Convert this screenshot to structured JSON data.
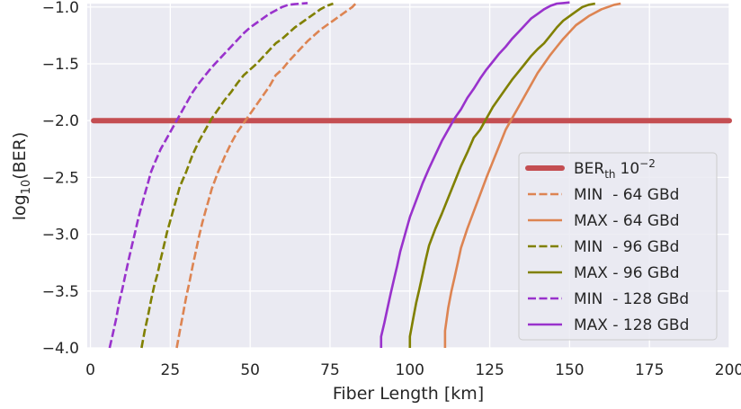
{
  "chart_data": {
    "type": "line",
    "xlabel": "Fiber Length [km]",
    "ylabel_main": "log",
    "ylabel_sub": "10",
    "ylabel_rest": "(BER)",
    "xlim": [
      -1,
      200
    ],
    "ylim": [
      -4.0,
      -0.97
    ],
    "xticks": [
      0,
      25,
      50,
      75,
      100,
      125,
      150,
      175,
      200
    ],
    "yticks": [
      -1.0,
      -1.5,
      -2.0,
      -2.5,
      -3.0,
      -3.5,
      -4.0
    ],
    "ytick_labels": [
      "−1.0",
      "−1.5",
      "−2.0",
      "−2.5",
      "−3.0",
      "−3.5",
      "−4.0"
    ],
    "grid": true,
    "legend_position": "lower-right",
    "threshold": {
      "name_main": "BER",
      "name_sub": "th",
      "name_value": "10",
      "name_exp": "−2",
      "y": -2.0,
      "x": [
        1,
        200
      ],
      "color": "#c44e52"
    },
    "series": [
      {
        "name": "MIN  - 64 GBd",
        "color": "#dd8452",
        "dash": true,
        "x": [
          27,
          28,
          29,
          30,
          31,
          32,
          33,
          34,
          35,
          36,
          37,
          38,
          40,
          42,
          44,
          46,
          48,
          50,
          52,
          54,
          56,
          58,
          60,
          62,
          64,
          66,
          68,
          70,
          72,
          74,
          76,
          78,
          80,
          82,
          83
        ],
        "y": [
          -4.0,
          -3.85,
          -3.7,
          -3.55,
          -3.42,
          -3.28,
          -3.15,
          -3.02,
          -2.9,
          -2.8,
          -2.7,
          -2.6,
          -2.45,
          -2.32,
          -2.2,
          -2.1,
          -2.02,
          -1.94,
          -1.86,
          -1.78,
          -1.7,
          -1.6,
          -1.55,
          -1.48,
          -1.42,
          -1.36,
          -1.3,
          -1.25,
          -1.2,
          -1.16,
          -1.12,
          -1.08,
          -1.04,
          -1.0,
          -0.97
        ]
      },
      {
        "name": "MAX - 64 GBd",
        "color": "#dd8452",
        "dash": false,
        "x": [
          111,
          111,
          112,
          113,
          114,
          115,
          116,
          118,
          120,
          122,
          124,
          126,
          128,
          130,
          132,
          134,
          136,
          138,
          140,
          142,
          144,
          146,
          148,
          150,
          152,
          154,
          156,
          158,
          160,
          162,
          164,
          166
        ],
        "y": [
          -4.0,
          -3.85,
          -3.65,
          -3.5,
          -3.38,
          -3.25,
          -3.12,
          -2.95,
          -2.8,
          -2.65,
          -2.5,
          -2.36,
          -2.22,
          -2.08,
          -1.98,
          -1.88,
          -1.78,
          -1.68,
          -1.58,
          -1.5,
          -1.42,
          -1.35,
          -1.28,
          -1.22,
          -1.16,
          -1.12,
          -1.08,
          -1.05,
          -1.02,
          -1.0,
          -0.98,
          -0.97
        ]
      },
      {
        "name": "MIN  - 96 GBd",
        "color": "#808000",
        "dash": true,
        "x": [
          16,
          17,
          18,
          19,
          20,
          21,
          22,
          23,
          24,
          25,
          26,
          27,
          28,
          30,
          32,
          34,
          36,
          38,
          40,
          42,
          44,
          46,
          48,
          50,
          52,
          54,
          56,
          58,
          60,
          62,
          64,
          66,
          68,
          70,
          72,
          74,
          76
        ],
        "y": [
          -4.0,
          -3.85,
          -3.72,
          -3.58,
          -3.45,
          -3.35,
          -3.22,
          -3.1,
          -2.98,
          -2.88,
          -2.78,
          -2.68,
          -2.58,
          -2.45,
          -2.3,
          -2.18,
          -2.08,
          -1.98,
          -1.9,
          -1.82,
          -1.75,
          -1.67,
          -1.6,
          -1.55,
          -1.5,
          -1.44,
          -1.38,
          -1.32,
          -1.28,
          -1.23,
          -1.18,
          -1.14,
          -1.1,
          -1.06,
          -1.02,
          -0.99,
          -0.97
        ]
      },
      {
        "name": "MAX - 96 GBd",
        "color": "#808000",
        "dash": false,
        "x": [
          100,
          100,
          101,
          102,
          103,
          104,
          105,
          106,
          108,
          110,
          112,
          114,
          116,
          118,
          120,
          122,
          124,
          126,
          128,
          130,
          132,
          134,
          136,
          138,
          140,
          142,
          144,
          146,
          148,
          150,
          152,
          154,
          156,
          158
        ],
        "y": [
          -4.0,
          -3.9,
          -3.75,
          -3.6,
          -3.48,
          -3.35,
          -3.22,
          -3.1,
          -2.95,
          -2.82,
          -2.68,
          -2.54,
          -2.4,
          -2.28,
          -2.15,
          -2.08,
          -1.98,
          -1.88,
          -1.8,
          -1.72,
          -1.64,
          -1.57,
          -1.5,
          -1.43,
          -1.37,
          -1.32,
          -1.25,
          -1.18,
          -1.12,
          -1.08,
          -1.04,
          -1.0,
          -0.98,
          -0.97
        ]
      },
      {
        "name": "MIN  - 128 GBd",
        "color": "#9932cc",
        "dash": true,
        "x": [
          6,
          7,
          8,
          9,
          10,
          11,
          12,
          13,
          14,
          15,
          16,
          17,
          18,
          19,
          20,
          22,
          24,
          26,
          28,
          30,
          32,
          34,
          36,
          38,
          40,
          42,
          44,
          46,
          48,
          50,
          52,
          54,
          56,
          58,
          60,
          62,
          64,
          66,
          68
        ],
        "y": [
          -4.0,
          -3.88,
          -3.75,
          -3.6,
          -3.48,
          -3.35,
          -3.22,
          -3.1,
          -2.98,
          -2.86,
          -2.75,
          -2.65,
          -2.55,
          -2.45,
          -2.38,
          -2.25,
          -2.15,
          -2.05,
          -1.95,
          -1.85,
          -1.75,
          -1.67,
          -1.6,
          -1.53,
          -1.47,
          -1.41,
          -1.35,
          -1.29,
          -1.23,
          -1.18,
          -1.14,
          -1.1,
          -1.06,
          -1.03,
          -1.0,
          -0.98,
          -0.975,
          -0.97,
          -0.965
        ]
      },
      {
        "name": "MAX - 128 GBd",
        "color": "#9932cc",
        "dash": false,
        "x": [
          91,
          91,
          92,
          93,
          94,
          95,
          96,
          97,
          98,
          99,
          100,
          102,
          104,
          106,
          108,
          110,
          112,
          114,
          116,
          118,
          120,
          122,
          124,
          126,
          128,
          130,
          132,
          134,
          136,
          138,
          140,
          142,
          144,
          146,
          148,
          150
        ],
        "y": [
          -4.0,
          -3.9,
          -3.78,
          -3.65,
          -3.52,
          -3.4,
          -3.28,
          -3.15,
          -3.05,
          -2.95,
          -2.85,
          -2.7,
          -2.55,
          -2.42,
          -2.3,
          -2.18,
          -2.08,
          -1.98,
          -1.9,
          -1.8,
          -1.72,
          -1.63,
          -1.55,
          -1.48,
          -1.41,
          -1.35,
          -1.28,
          -1.22,
          -1.16,
          -1.1,
          -1.06,
          -1.02,
          -0.99,
          -0.97,
          -0.965,
          -0.96
        ]
      }
    ]
  }
}
